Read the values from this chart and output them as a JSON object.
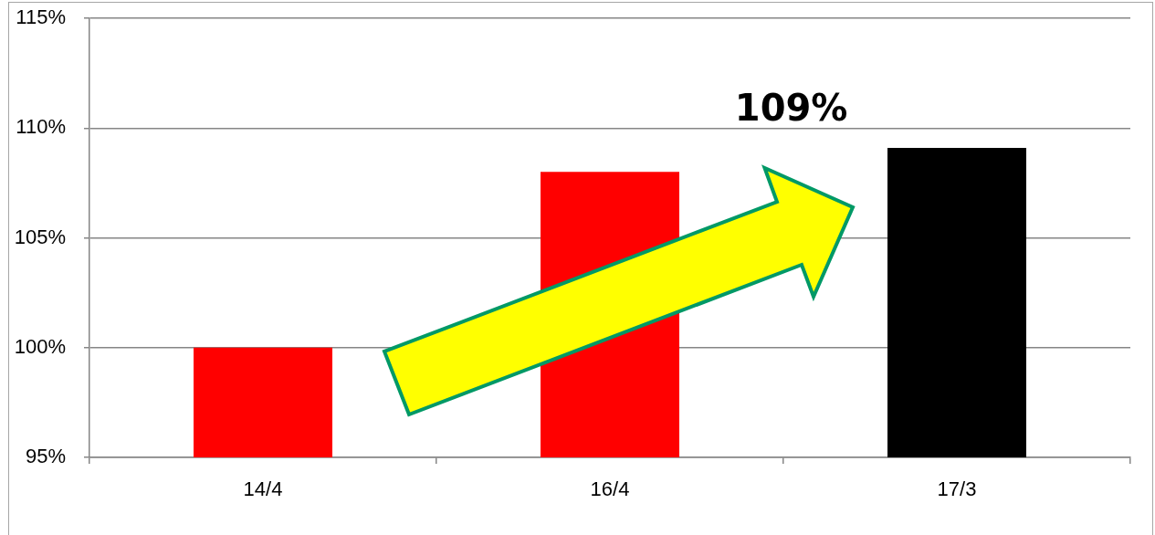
{
  "chart_data": {
    "type": "bar",
    "categories": [
      "14/4",
      "16/4",
      "17/3"
    ],
    "values": [
      100,
      108,
      109.1
    ],
    "colors": [
      "#ff0000",
      "#ff0000",
      "#000000"
    ],
    "ylim": [
      95,
      115
    ],
    "yticks": [
      {
        "value": 95,
        "label": "95%"
      },
      {
        "value": 100,
        "label": "100%"
      },
      {
        "value": 105,
        "label": "105%"
      },
      {
        "value": 110,
        "label": "110%"
      },
      {
        "value": 115,
        "label": "115%"
      }
    ],
    "grid": "y",
    "annotations": [
      "109%"
    ]
  }
}
